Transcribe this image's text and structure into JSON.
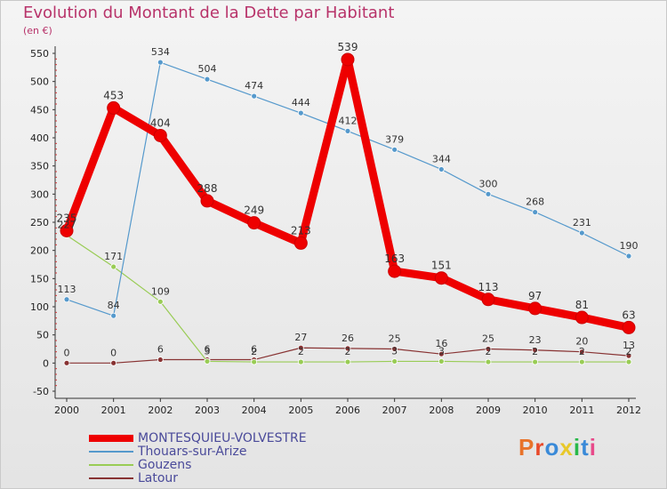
{
  "title": "Evolution du Montant de la Dette par Habitant",
  "subtitle": "(en €)",
  "logo": "Proxiti",
  "colors": {
    "title": "#b8336a",
    "logo_letters": [
      "#e8732a",
      "#e84a2a",
      "#3a8ad8",
      "#e8c82a",
      "#2ab84a",
      "#3a8ad8",
      "#e84a8a"
    ]
  },
  "chart_data": {
    "type": "line",
    "title": "Evolution du Montant de la Dette par Habitant",
    "subtitle": "(en €)",
    "x": [
      "2000",
      "2001",
      "2002",
      "2003",
      "2004",
      "2005",
      "2006",
      "2007",
      "2008",
      "2009",
      "2010",
      "2011",
      "2012"
    ],
    "ylim": [
      -50,
      550
    ],
    "yticks": [
      -50,
      0,
      50,
      100,
      150,
      200,
      250,
      300,
      350,
      400,
      450,
      500,
      550
    ],
    "grid": false,
    "legend_position": "bottom-left",
    "series": [
      {
        "name": "MONTESQUIEU-VOLVESTRE",
        "color": "#ee0000",
        "style": "bold",
        "values": [
          235,
          453,
          404,
          288,
          249,
          213,
          539,
          163,
          151,
          113,
          97,
          81,
          63
        ]
      },
      {
        "name": "Thouars-sur-Arize",
        "color": "#5599cc",
        "style": "thin",
        "values": [
          113,
          84,
          534,
          504,
          474,
          444,
          412,
          379,
          344,
          300,
          268,
          231,
          190
        ]
      },
      {
        "name": "Gouzens",
        "color": "#99cc55",
        "style": "thin",
        "values": [
          227,
          171,
          109,
          3,
          2,
          2,
          2,
          3,
          3,
          2,
          2,
          2,
          2
        ]
      },
      {
        "name": "Latour",
        "color": "#883333",
        "style": "thin",
        "values": [
          0,
          0,
          6,
          6,
          6,
          27,
          26,
          25,
          16,
          25,
          23,
          20,
          13
        ]
      }
    ]
  }
}
